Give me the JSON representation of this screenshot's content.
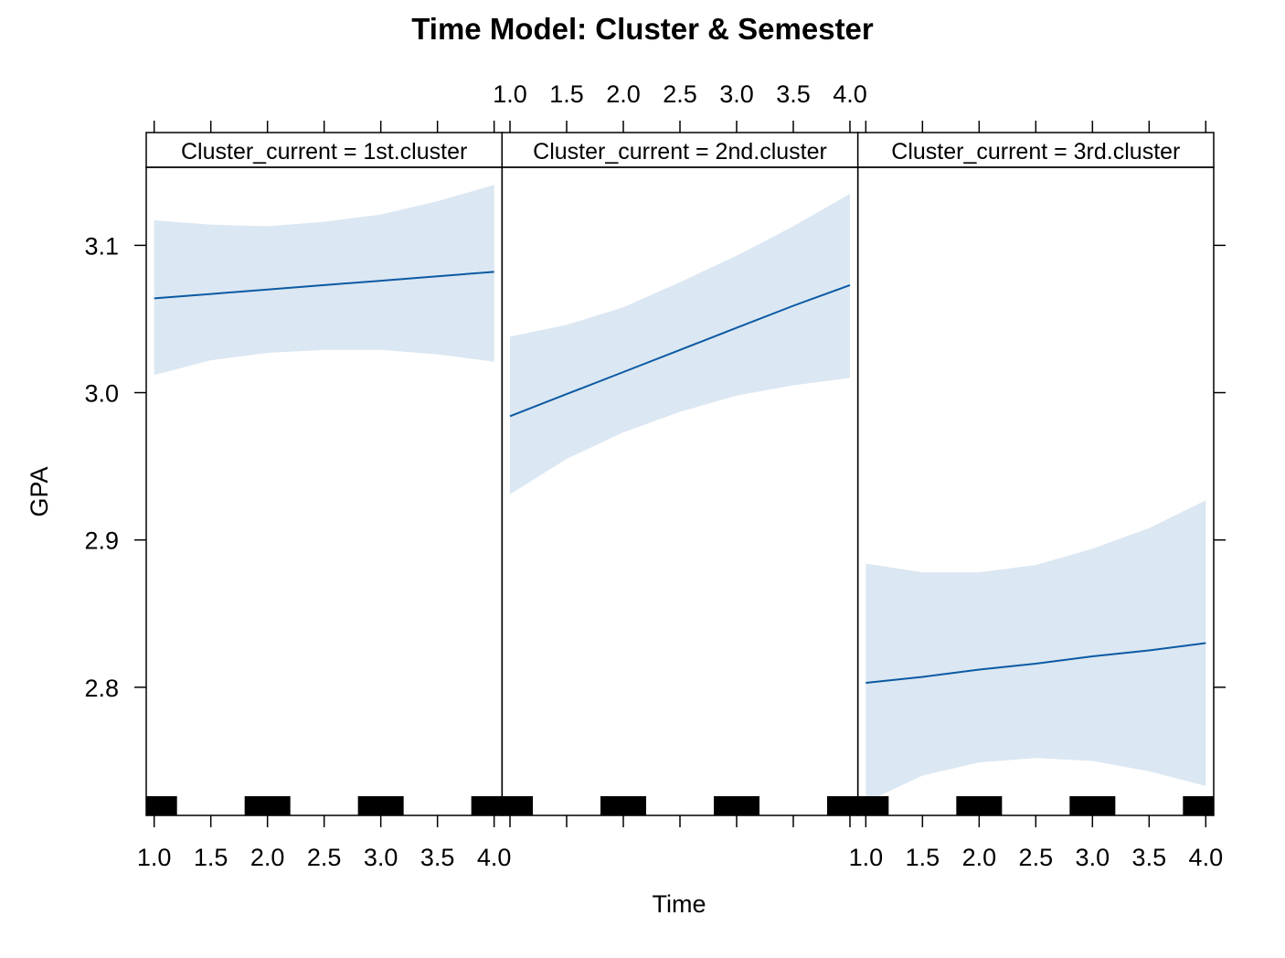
{
  "chart_data": {
    "type": "line",
    "title": "Time Model: Cluster & Semester",
    "xlabel": "Time",
    "ylabel": "GPA",
    "xlim": [
      0.93,
      4.07
    ],
    "ylim": [
      2.713,
      3.153
    ],
    "x_ticks": [
      1.0,
      1.5,
      2.0,
      2.5,
      3.0,
      3.5,
      4.0
    ],
    "x_tick_labels": [
      "1.0",
      "1.5",
      "2.0",
      "2.5",
      "3.0",
      "3.5",
      "4.0"
    ],
    "y_ticks": [
      2.8,
      2.9,
      3.0,
      3.1
    ],
    "y_tick_labels": [
      "2.8",
      "2.9",
      "3.0",
      "3.1"
    ],
    "grid": false,
    "legend": "none",
    "colors": {
      "line": "#0b5aa3",
      "band": "#dbe7f2",
      "rug": "#000000"
    },
    "rug_x": [
      1,
      2,
      3,
      4
    ],
    "panels": [
      {
        "strip": "Cluster_current = 1st.cluster",
        "x": [
          1.0,
          1.5,
          2.0,
          2.5,
          3.0,
          3.5,
          4.0
        ],
        "fit": [
          3.064,
          3.067,
          3.07,
          3.073,
          3.076,
          3.079,
          3.082
        ],
        "lower": [
          3.012,
          3.022,
          3.027,
          3.029,
          3.029,
          3.026,
          3.021
        ],
        "upper": [
          3.117,
          3.114,
          3.113,
          3.116,
          3.121,
          3.13,
          3.141
        ]
      },
      {
        "strip": "Cluster_current = 2nd.cluster",
        "x": [
          1.0,
          1.5,
          2.0,
          2.5,
          3.0,
          3.5,
          4.0
        ],
        "fit": [
          2.984,
          2.999,
          3.014,
          3.029,
          3.044,
          3.059,
          3.073
        ],
        "lower": [
          2.931,
          2.955,
          2.973,
          2.987,
          2.998,
          3.005,
          3.01
        ],
        "upper": [
          3.038,
          3.046,
          3.058,
          3.075,
          3.093,
          3.113,
          3.135
        ]
      },
      {
        "strip": "Cluster_current = 3rd.cluster",
        "x": [
          1.0,
          1.5,
          2.0,
          2.5,
          3.0,
          3.5,
          4.0
        ],
        "fit": [
          2.803,
          2.807,
          2.812,
          2.816,
          2.821,
          2.825,
          2.83
        ],
        "lower": [
          2.722,
          2.74,
          2.749,
          2.752,
          2.75,
          2.743,
          2.733
        ],
        "upper": [
          2.884,
          2.878,
          2.878,
          2.883,
          2.894,
          2.908,
          2.927
        ]
      }
    ]
  }
}
